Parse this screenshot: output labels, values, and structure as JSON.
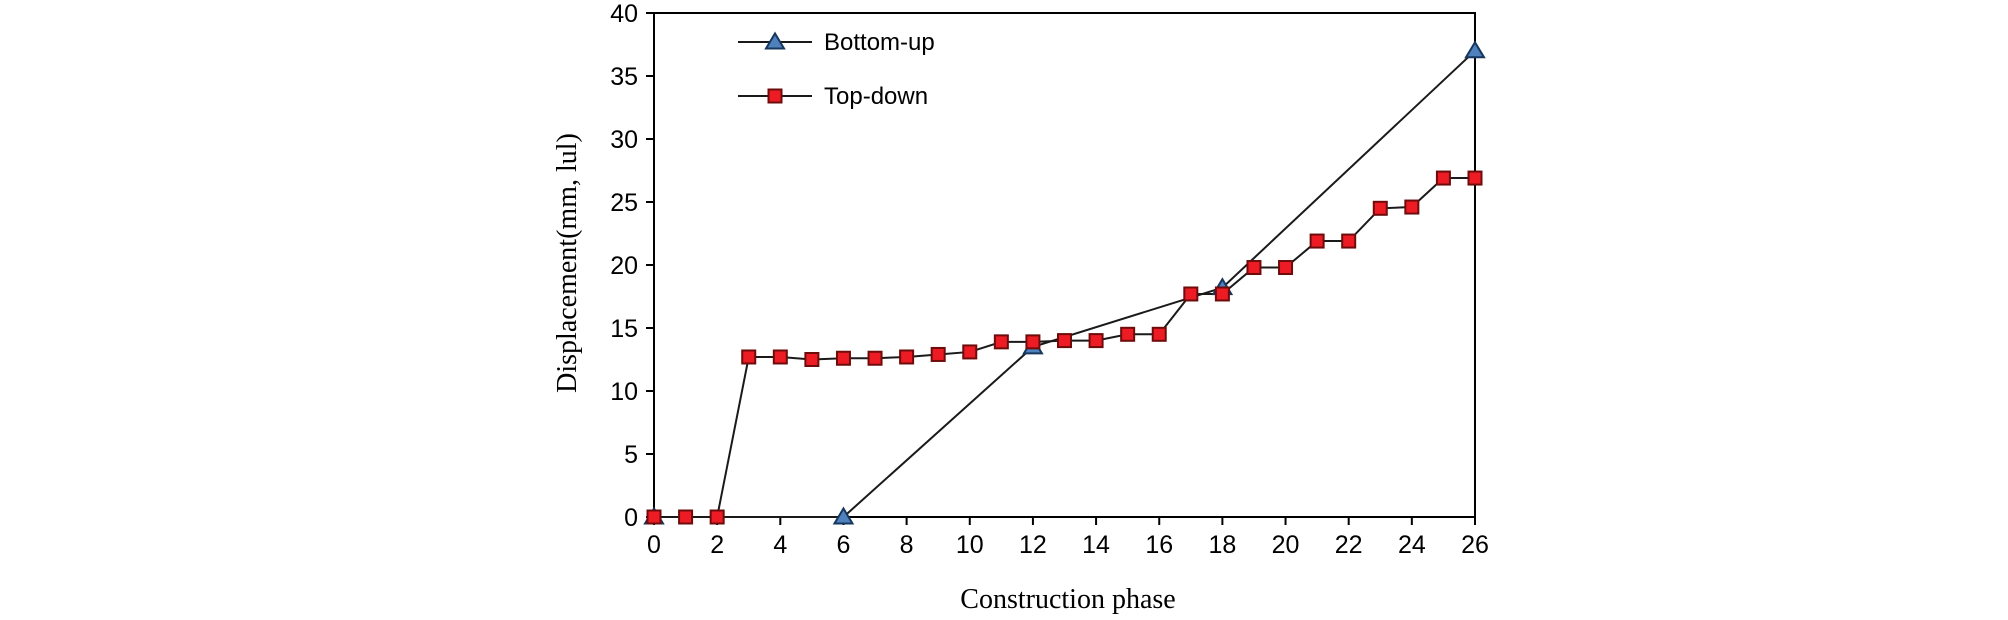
{
  "page": {
    "background": "#ffffff"
  },
  "chart_data": {
    "type": "line",
    "title": "",
    "xlabel": "Construction phase",
    "ylabel": "Displacement(mm, lul)",
    "xlim": [
      0,
      26
    ],
    "ylim": [
      0,
      40
    ],
    "xticks": [
      0,
      2,
      4,
      6,
      8,
      10,
      12,
      14,
      16,
      18,
      20,
      22,
      24,
      26
    ],
    "yticks": [
      0,
      5,
      10,
      15,
      20,
      25,
      30,
      35,
      40
    ],
    "grid": false,
    "axis_color": "#000000",
    "line_color": "#1a1a1a",
    "legend_position": "top-left-inside",
    "series": [
      {
        "name": "Bottom-up",
        "marker": "triangle-up",
        "line_color": "#1a1a1a",
        "marker_fill": "#4f81bd",
        "marker_stroke": "#17375e",
        "x": [
          0,
          6,
          12,
          18,
          26
        ],
        "y": [
          0,
          0,
          13.5,
          18.2,
          37
        ]
      },
      {
        "name": "Top-down",
        "marker": "square",
        "line_color": "#1a1a1a",
        "marker_fill": "#ed1c24",
        "marker_stroke": "#6e0b0b",
        "x": [
          0,
          1,
          2,
          3,
          4,
          5,
          6,
          7,
          8,
          9,
          10,
          11,
          12,
          13,
          14,
          15,
          16,
          17,
          18,
          19,
          20,
          21,
          22,
          23,
          24,
          25,
          26
        ],
        "y": [
          0,
          0,
          0,
          12.7,
          12.7,
          12.5,
          12.6,
          12.6,
          12.7,
          12.9,
          13.1,
          13.9,
          13.9,
          14.0,
          14.0,
          14.5,
          14.5,
          17.7,
          17.7,
          19.8,
          19.8,
          21.9,
          21.9,
          24.5,
          24.6,
          26.9,
          26.9
        ]
      }
    ]
  }
}
